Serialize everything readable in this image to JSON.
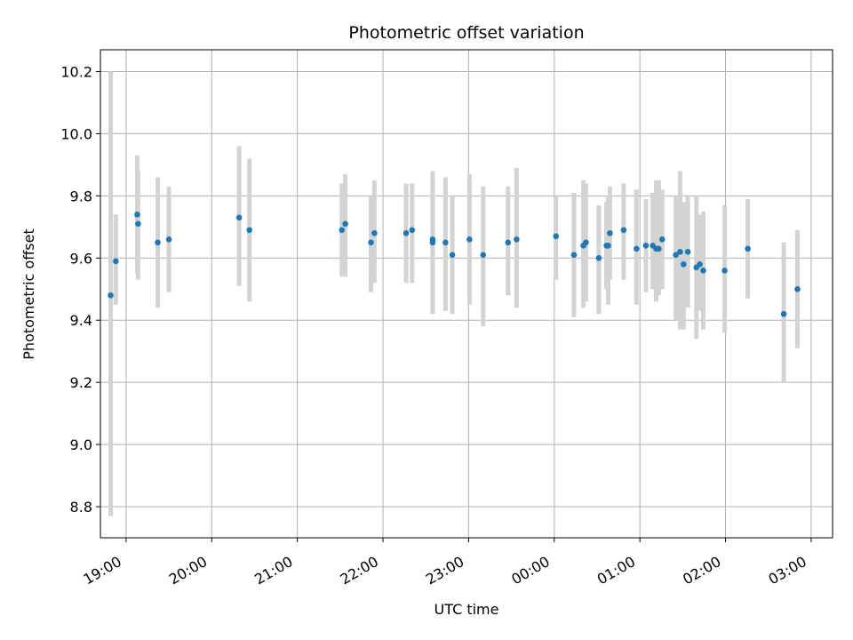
{
  "chart_data": {
    "type": "scatter",
    "title": "Photometric offset variation",
    "xlabel": "UTC time",
    "ylabel": "Photometric offset",
    "x_unit": "hours since 00:00 UTC (negative = previous evening)",
    "xlim": [
      -5.3,
      3.25
    ],
    "ylim": [
      8.7,
      10.27
    ],
    "grid": true,
    "x_ticks": [
      {
        "value": -5,
        "label": "19:00"
      },
      {
        "value": -4,
        "label": "20:00"
      },
      {
        "value": -3,
        "label": "21:00"
      },
      {
        "value": -2,
        "label": "22:00"
      },
      {
        "value": -1,
        "label": "23:00"
      },
      {
        "value": 0,
        "label": "00:00"
      },
      {
        "value": 1,
        "label": "01:00"
      },
      {
        "value": 2,
        "label": "02:00"
      },
      {
        "value": 3,
        "label": "03:00"
      }
    ],
    "y_ticks": [
      {
        "value": 8.8,
        "label": "8.8"
      },
      {
        "value": 9.0,
        "label": "9.0"
      },
      {
        "value": 9.2,
        "label": "9.2"
      },
      {
        "value": 9.4,
        "label": "9.4"
      },
      {
        "value": 9.6,
        "label": "9.6"
      },
      {
        "value": 9.8,
        "label": "9.8"
      },
      {
        "value": 10.0,
        "label": "10.0"
      },
      {
        "value": 10.2,
        "label": "10.2"
      }
    ],
    "colors": {
      "point": "#1f77b4",
      "errorbar": "#d3d3d3",
      "grid": "#b0b0b0"
    },
    "points": [
      {
        "x": -5.18,
        "y": 9.48,
        "err_low": 8.77,
        "err_high": 10.2
      },
      {
        "x": -5.12,
        "y": 9.59,
        "err_low": 9.45,
        "err_high": 9.74
      },
      {
        "x": -4.87,
        "y": 9.74,
        "err_low": 9.55,
        "err_high": 9.93
      },
      {
        "x": -4.86,
        "y": 9.71,
        "err_low": 9.53,
        "err_high": 9.88
      },
      {
        "x": -4.63,
        "y": 9.65,
        "err_low": 9.44,
        "err_high": 9.86
      },
      {
        "x": -4.5,
        "y": 9.66,
        "err_low": 9.49,
        "err_high": 9.83
      },
      {
        "x": -3.68,
        "y": 9.73,
        "err_low": 9.51,
        "err_high": 9.96
      },
      {
        "x": -3.56,
        "y": 9.69,
        "err_low": 9.46,
        "err_high": 9.92
      },
      {
        "x": -2.48,
        "y": 9.69,
        "err_low": 9.54,
        "err_high": 9.84
      },
      {
        "x": -2.44,
        "y": 9.71,
        "err_low": 9.54,
        "err_high": 9.87
      },
      {
        "x": -2.14,
        "y": 9.65,
        "err_low": 9.49,
        "err_high": 9.8
      },
      {
        "x": -2.1,
        "y": 9.68,
        "err_low": 9.52,
        "err_high": 9.85
      },
      {
        "x": -1.73,
        "y": 9.68,
        "err_low": 9.52,
        "err_high": 9.84
      },
      {
        "x": -1.66,
        "y": 9.69,
        "err_low": 9.52,
        "err_high": 9.84
      },
      {
        "x": -1.42,
        "y": 9.66,
        "err_low": 9.42,
        "err_high": 9.88
      },
      {
        "x": -1.42,
        "y": 9.65,
        "err_low": 9.43,
        "err_high": 9.87
      },
      {
        "x": -1.27,
        "y": 9.65,
        "err_low": 9.43,
        "err_high": 9.86
      },
      {
        "x": -1.19,
        "y": 9.61,
        "err_low": 9.42,
        "err_high": 9.8
      },
      {
        "x": -0.99,
        "y": 9.66,
        "err_low": 9.45,
        "err_high": 9.87
      },
      {
        "x": -0.83,
        "y": 9.61,
        "err_low": 9.38,
        "err_high": 9.83
      },
      {
        "x": -0.54,
        "y": 9.65,
        "err_low": 9.48,
        "err_high": 9.83
      },
      {
        "x": -0.44,
        "y": 9.66,
        "err_low": 9.44,
        "err_high": 9.89
      },
      {
        "x": 0.02,
        "y": 9.67,
        "err_low": 9.53,
        "err_high": 9.8
      },
      {
        "x": 0.23,
        "y": 9.61,
        "err_low": 9.41,
        "err_high": 9.81
      },
      {
        "x": 0.34,
        "y": 9.64,
        "err_low": 9.44,
        "err_high": 9.85
      },
      {
        "x": 0.37,
        "y": 9.65,
        "err_low": 9.46,
        "err_high": 9.84
      },
      {
        "x": 0.52,
        "y": 9.6,
        "err_low": 9.42,
        "err_high": 9.77
      },
      {
        "x": 0.61,
        "y": 9.64,
        "err_low": 9.5,
        "err_high": 9.78
      },
      {
        "x": 0.63,
        "y": 9.64,
        "err_low": 9.45,
        "err_high": 9.8
      },
      {
        "x": 0.65,
        "y": 9.68,
        "err_low": 9.53,
        "err_high": 9.83
      },
      {
        "x": 0.81,
        "y": 9.69,
        "err_low": 9.53,
        "err_high": 9.84
      },
      {
        "x": 0.96,
        "y": 9.63,
        "err_low": 9.45,
        "err_high": 9.82
      },
      {
        "x": 1.07,
        "y": 9.64,
        "err_low": 9.49,
        "err_high": 9.79
      },
      {
        "x": 1.15,
        "y": 9.64,
        "err_low": 9.5,
        "err_high": 9.81
      },
      {
        "x": 1.19,
        "y": 9.63,
        "err_low": 9.46,
        "err_high": 9.85
      },
      {
        "x": 1.22,
        "y": 9.63,
        "err_low": 9.48,
        "err_high": 9.85
      },
      {
        "x": 1.26,
        "y": 9.66,
        "err_low": 9.5,
        "err_high": 9.82
      },
      {
        "x": 1.42,
        "y": 9.61,
        "err_low": 9.4,
        "err_high": 9.8
      },
      {
        "x": 1.47,
        "y": 9.62,
        "err_low": 9.37,
        "err_high": 9.88
      },
      {
        "x": 1.51,
        "y": 9.58,
        "err_low": 9.37,
        "err_high": 9.78
      },
      {
        "x": 1.56,
        "y": 9.62,
        "err_low": 9.44,
        "err_high": 9.8
      },
      {
        "x": 1.66,
        "y": 9.57,
        "err_low": 9.34,
        "err_high": 9.8
      },
      {
        "x": 1.7,
        "y": 9.58,
        "err_low": 9.43,
        "err_high": 9.74
      },
      {
        "x": 1.74,
        "y": 9.56,
        "err_low": 9.37,
        "err_high": 9.75
      },
      {
        "x": 1.99,
        "y": 9.56,
        "err_low": 9.36,
        "err_high": 9.77
      },
      {
        "x": 2.26,
        "y": 9.63,
        "err_low": 9.47,
        "err_high": 9.79
      },
      {
        "x": 2.68,
        "y": 9.42,
        "err_low": 9.2,
        "err_high": 9.65
      },
      {
        "x": 2.84,
        "y": 9.5,
        "err_low": 9.31,
        "err_high": 9.69
      }
    ]
  }
}
